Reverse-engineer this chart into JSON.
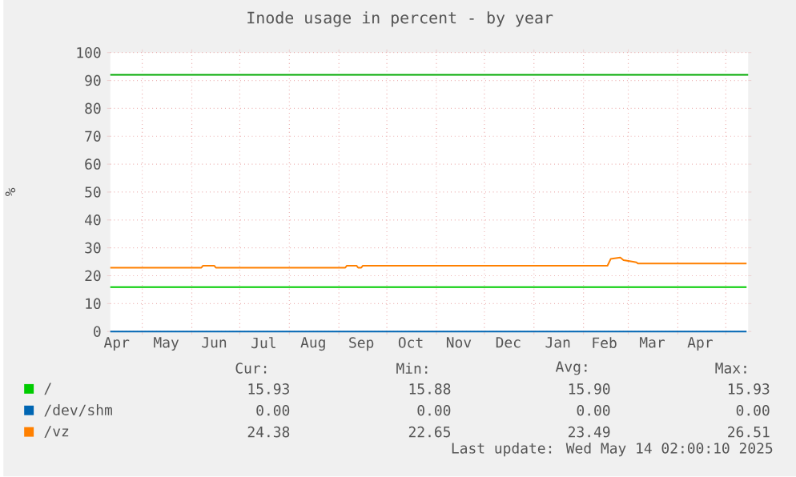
{
  "chart_data": {
    "type": "line",
    "title": "Inode usage in percent - by year",
    "ylabel": "%",
    "xlim": [
      "2024-04-11",
      "2025-05-15"
    ],
    "xticks": [
      {
        "value": "2024-04-15",
        "label": "Apr"
      },
      {
        "value": "2024-05-01",
        "label": null
      },
      {
        "value": "2024-05-16",
        "label": "May"
      },
      {
        "value": "2024-06-01",
        "label": null
      },
      {
        "value": "2024-06-15",
        "label": "Jun"
      },
      {
        "value": "2024-07-01",
        "label": null
      },
      {
        "value": "2024-07-16",
        "label": "Jul"
      },
      {
        "value": "2024-08-01",
        "label": null
      },
      {
        "value": "2024-08-16",
        "label": "Aug"
      },
      {
        "value": "2024-09-01",
        "label": null
      },
      {
        "value": "2024-09-15",
        "label": "Sep"
      },
      {
        "value": "2024-10-01",
        "label": null
      },
      {
        "value": "2024-10-16",
        "label": "Oct"
      },
      {
        "value": "2024-11-01",
        "label": null
      },
      {
        "value": "2024-11-15",
        "label": "Nov"
      },
      {
        "value": "2024-12-01",
        "label": null
      },
      {
        "value": "2024-12-16",
        "label": "Dec"
      },
      {
        "value": "2025-01-01",
        "label": null
      },
      {
        "value": "2025-01-16",
        "label": "Jan"
      },
      {
        "value": "2025-02-01",
        "label": null
      },
      {
        "value": "2025-02-14",
        "label": "Feb"
      },
      {
        "value": "2025-03-01",
        "label": null
      },
      {
        "value": "2025-03-16",
        "label": "Mar"
      },
      {
        "value": "2025-04-01",
        "label": null
      },
      {
        "value": "2025-04-15",
        "label": "Apr"
      },
      {
        "value": "2025-05-01",
        "label": null
      }
    ],
    "ylim": [
      0,
      100
    ],
    "yticks": [
      0,
      10,
      20,
      30,
      40,
      50,
      60,
      70,
      80,
      90,
      100
    ],
    "grid": true,
    "legend": "bottom",
    "series": [
      {
        "name": "/",
        "color": "#00cc00",
        "x": [
          "2024-04-11",
          "2024-09-01",
          "2025-02-01",
          "2025-05-14"
        ],
        "values": [
          15.9,
          15.9,
          15.9,
          15.9
        ]
      },
      {
        "name": "/dev/shm",
        "color": "#0066b3",
        "x": [
          "2024-04-11",
          "2025-05-14"
        ],
        "values": [
          0,
          0
        ]
      },
      {
        "name": "/vz",
        "color": "#ff8000",
        "x": [
          "2024-04-11",
          "2024-06-07",
          "2024-06-08",
          "2024-06-15",
          "2024-06-16",
          "2024-09-05",
          "2024-09-06",
          "2024-09-12",
          "2024-09-13",
          "2024-09-15",
          "2024-09-16",
          "2025-02-16",
          "2025-02-18",
          "2025-02-24",
          "2025-02-26",
          "2025-03-04",
          "2025-03-06",
          "2025-03-07",
          "2025-05-14"
        ],
        "values": [
          22.9,
          22.9,
          23.6,
          23.6,
          22.9,
          22.9,
          23.6,
          23.6,
          22.9,
          22.9,
          23.6,
          23.6,
          26.0,
          26.5,
          25.6,
          25.0,
          24.8,
          24.4,
          24.4
        ]
      }
    ],
    "ref_lines": [
      {
        "axis": "y",
        "value": 92,
        "color": "#00aa00"
      }
    ],
    "annotations": [
      "Cur:",
      "Min:",
      "Avg:",
      "Max:",
      "15.93",
      "15.88",
      "15.90",
      "15.93",
      "0.00",
      "0.00",
      "0.00",
      "0.00",
      "24.38",
      "22.65",
      "23.49",
      "26.51",
      "Last update: Wed May 14 02:00:10 2025"
    ]
  }
}
